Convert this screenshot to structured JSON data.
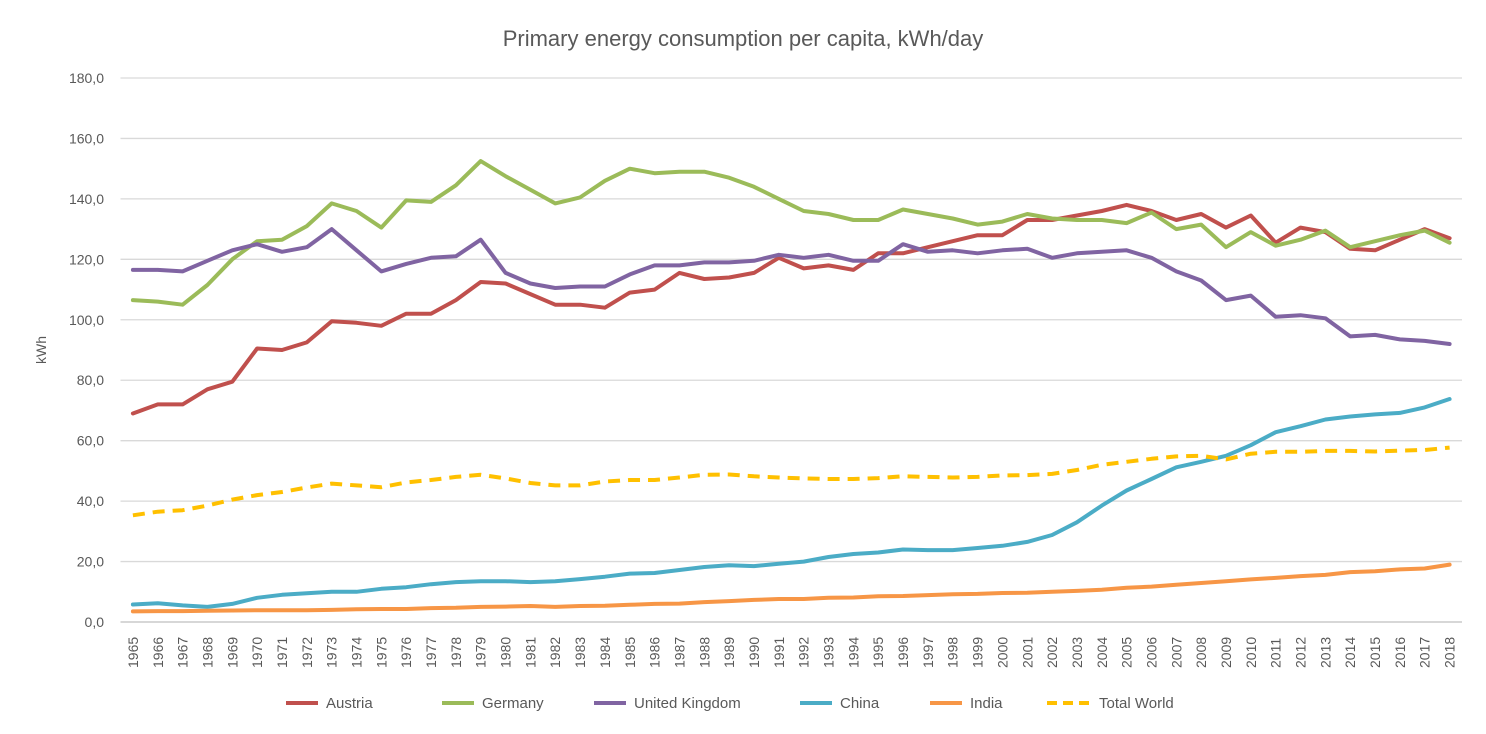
{
  "chart_data": {
    "type": "line",
    "title": "Primary energy consumption per capita, kWh/day",
    "xlabel": "",
    "ylabel": "kWh",
    "ylim": [
      0,
      180
    ],
    "y_ticks": [
      "0,0",
      "20,0",
      "40,0",
      "60,0",
      "80,0",
      "100,0",
      "120,0",
      "140,0",
      "160,0",
      "180,0"
    ],
    "grid": "horizontal",
    "legend": "bottom",
    "categories": [
      "1965",
      "1966",
      "1967",
      "1968",
      "1969",
      "1970",
      "1971",
      "1972",
      "1973",
      "1974",
      "1975",
      "1976",
      "1977",
      "1978",
      "1979",
      "1980",
      "1981",
      "1982",
      "1983",
      "1984",
      "1985",
      "1986",
      "1987",
      "1988",
      "1989",
      "1990",
      "1991",
      "1992",
      "1993",
      "1994",
      "1995",
      "1996",
      "1997",
      "1998",
      "1999",
      "2000",
      "2001",
      "2002",
      "2003",
      "2004",
      "2005",
      "2006",
      "2007",
      "2008",
      "2009",
      "2010",
      "2011",
      "2012",
      "2013",
      "2014",
      "2015",
      "2016",
      "2017",
      "2018"
    ],
    "series": [
      {
        "name": "Austria",
        "color": "#C0504D",
        "dashed": false,
        "values": [
          69,
          72,
          72,
          77,
          79.5,
          90.5,
          90,
          92.5,
          99.5,
          99,
          98,
          102,
          102,
          106.5,
          112.5,
          112,
          108.5,
          105,
          105,
          104,
          109,
          110,
          115.5,
          113.5,
          114,
          115.5,
          120.5,
          117,
          118,
          116.5,
          122,
          122,
          124,
          126,
          128,
          128,
          133,
          133,
          134.5,
          136,
          138,
          136,
          133,
          135,
          130.5,
          134.5,
          125.5,
          130.5,
          129,
          123.5,
          123,
          126.5,
          130,
          127
        ]
      },
      {
        "name": "Germany",
        "color": "#9BBB59",
        "dashed": false,
        "values": [
          106.5,
          106,
          105,
          111.5,
          120,
          126,
          126.5,
          131,
          138.5,
          136,
          130.5,
          139.5,
          139,
          144.5,
          152.5,
          147.5,
          143,
          138.5,
          140.5,
          146,
          150,
          148.5,
          149,
          149,
          147,
          144,
          140,
          136,
          135,
          133,
          133,
          136.5,
          135,
          133.5,
          131.5,
          132.5,
          135,
          133.5,
          133,
          133,
          132,
          135.5,
          130,
          131.5,
          124,
          129,
          124.5,
          126.5,
          129.5,
          124,
          126,
          128,
          129.5,
          125.5
        ]
      },
      {
        "name": "United Kingdom",
        "color": "#8064A2",
        "dashed": false,
        "values": [
          116.5,
          116.5,
          116,
          119.5,
          123,
          125,
          122.5,
          124,
          130,
          123,
          116,
          118.5,
          120.5,
          121,
          126.5,
          115.5,
          112,
          110.5,
          111,
          111,
          115,
          118,
          118,
          119,
          119,
          119.5,
          121.5,
          120.5,
          121.5,
          119.5,
          119.5,
          125,
          122.5,
          123,
          122,
          123,
          123.5,
          120.5,
          122,
          122.5,
          123,
          120.5,
          116,
          113,
          106.5,
          108,
          101,
          101.5,
          100.5,
          94.5,
          95,
          93.5,
          93,
          92
        ]
      },
      {
        "name": "China",
        "color": "#4BACC6",
        "dashed": false,
        "values": [
          5.8,
          6.2,
          5.5,
          5,
          6,
          8,
          9,
          9.5,
          10,
          10,
          11,
          11.5,
          12.5,
          13.2,
          13.5,
          13.5,
          13.2,
          13.5,
          14.2,
          15,
          16,
          16.2,
          17.2,
          18.2,
          18.8,
          18.5,
          19.3,
          20,
          21.5,
          22.5,
          23,
          24,
          23.8,
          23.8,
          24.5,
          25.2,
          26.5,
          28.8,
          33,
          38.5,
          43.5,
          47.3,
          51.2,
          53,
          55,
          58.5,
          62.8,
          64.8,
          67,
          68,
          68.7,
          69.2,
          71,
          73.8
        ]
      },
      {
        "name": "India",
        "color": "#F79646",
        "dashed": false,
        "values": [
          3.5,
          3.6,
          3.6,
          3.7,
          3.8,
          3.9,
          3.9,
          3.9,
          4,
          4.2,
          4.3,
          4.3,
          4.6,
          4.7,
          5,
          5.1,
          5.3,
          5,
          5.3,
          5.4,
          5.7,
          6,
          6.1,
          6.6,
          6.9,
          7.3,
          7.6,
          7.6,
          8,
          8.1,
          8.5,
          8.6,
          8.9,
          9.2,
          9.3,
          9.6,
          9.7,
          10,
          10.3,
          10.7,
          11.3,
          11.7,
          12.3,
          12.9,
          13.5,
          14.1,
          14.6,
          15.2,
          15.6,
          16.5,
          16.8,
          17.4,
          17.7,
          19
        ]
      },
      {
        "name": "Total World",
        "color": "#FFC000",
        "dashed": true,
        "values": [
          35.3,
          36.5,
          37,
          38.5,
          40.5,
          42,
          43,
          44.5,
          45.8,
          45.2,
          44.6,
          46.2,
          47,
          48,
          48.7,
          47.5,
          46,
          45.2,
          45.2,
          46.5,
          47,
          47,
          47.8,
          48.7,
          48.8,
          48.2,
          47.8,
          47.5,
          47.3,
          47.3,
          47.6,
          48.2,
          48,
          47.8,
          48,
          48.5,
          48.6,
          49,
          50.3,
          52,
          53,
          54,
          54.8,
          55,
          53.8,
          55.7,
          56.3,
          56.3,
          56.6,
          56.6,
          56.4,
          56.7,
          56.9,
          57.7
        ]
      }
    ]
  }
}
